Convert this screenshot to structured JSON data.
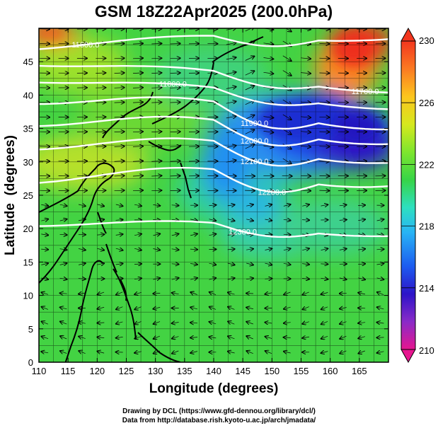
{
  "chart_data": {
    "type": "heatmap",
    "title": "GSM 18Z22Apr2025 (200.0hPa)",
    "xlabel": "Longitude (degrees)",
    "ylabel": "Latitude  (degrees)",
    "xlim": [
      110,
      170
    ],
    "ylim": [
      0,
      50
    ],
    "x_ticks": [
      "110",
      "115",
      "120",
      "125",
      "130",
      "135",
      "140",
      "145",
      "150",
      "155",
      "160",
      "165"
    ],
    "y_ticks": [
      "0",
      "5",
      "10",
      "15",
      "20",
      "25",
      "30",
      "35",
      "40",
      "45"
    ],
    "grid": true,
    "field": "temperature (K), shaded",
    "colorbar": {
      "min": 210,
      "max": 230,
      "ticks": [
        "210",
        "214",
        "218",
        "222",
        "226",
        "230"
      ],
      "colors": [
        "#e6168f",
        "#8a2bc8",
        "#2d14c8",
        "#1c5cf0",
        "#28b4f5",
        "#2ee0c0",
        "#37d447",
        "#7ee62e",
        "#d6e81e",
        "#fcc51e",
        "#fb7a22",
        "#f2361e"
      ]
    },
    "contours": {
      "field": "geopotential height (m)",
      "levels": [
        {
          "label": "11600.0",
          "lat_at_110": 47.5,
          "lat_at_170": 49.0
        },
        {
          "label": "11700.0",
          "lat_at_110": 45.0,
          "lat_at_170": 41.0
        },
        {
          "label": "11800.0",
          "lat_at_110": 42.5,
          "lat_at_170": 38.5
        },
        {
          "label": "11900.0",
          "lat_at_110": 39.8,
          "lat_at_170": 36.0
        },
        {
          "label": "12000.0",
          "lat_at_110": 36.5,
          "lat_at_170": 33.8
        },
        {
          "label": "12100.0",
          "lat_at_110": 33.0,
          "lat_at_170": 31.0
        },
        {
          "label": "12200.0",
          "lat_at_110": 28.0,
          "lat_at_170": 27.5
        },
        {
          "label": "12300.0",
          "lat_at_110": 21.0,
          "lat_at_170": 19.5
        }
      ]
    },
    "vectors": "wind streamlines (arrows)"
  },
  "credits": {
    "line1": "Drawing by DCL (https://www.gfd-dennou.org/library/dcl/)",
    "line2": "Data from http://database.rish.kyoto-u.ac.jp/arch/jmadata/"
  }
}
